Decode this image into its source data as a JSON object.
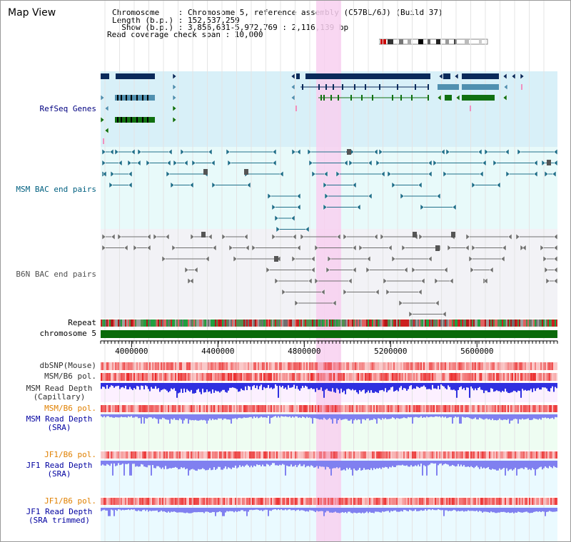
{
  "app_title": "Map View",
  "info": {
    "chromosome": "Chromosome    : Chromosome 5, reference assembly (C57BL/6J) (Build 37)",
    "length": "Length (b.p.) : 152,537,259",
    "show": "  Show (b.p.) : 3,856,631-5,972,769 : 2,116,139 bp",
    "coverage": "Read coverage check span : 10,000"
  },
  "view": {
    "start": 3856631,
    "end": 5972769,
    "highlight": [
      4800000,
      4860000
    ]
  },
  "axis": {
    "ticks": [
      4000000,
      4400000,
      4800000,
      5200000,
      5600000
    ]
  },
  "labels": {
    "refseq": "RefSeq Genes",
    "msm_bac": "MSM BAC end pairs",
    "b6n_bac": "B6N BAC end pairs",
    "repeat": "Repeat",
    "chromosome": "chromosome 5",
    "dbsnp": "dbSNP(Mouse)",
    "msm_pol": "MSM/B6 pol.",
    "msm_depth_cap_1": "MSM Read Depth",
    "msm_depth_cap_2": "(Capillary)",
    "msm_pol2": "MSM/B6 pol.",
    "msm_depth_sra_1": "MSM Read Depth",
    "msm_depth_sra_2": "(SRA)",
    "jf1_pol": "JF1/B6 pol.",
    "jf1_depth_sra_1": "JF1 Read Depth",
    "jf1_depth_sra_2": "(SRA)",
    "jf1_pol2": "JF1/B6 pol.",
    "jf1_depth_trim_1": "JF1 Read Depth",
    "jf1_depth_trim_2": "(SRA trimmed)"
  },
  "colors": {
    "refseq_bg": "#d8f0f8",
    "msm_bg": "#e8fafa",
    "b6n_bg": "#f2f2f6",
    "highlight": "#f8d0f0",
    "gene_dark": "#0a2a5a",
    "gene_blue": "#5090b0",
    "gene_green": "#107010",
    "msm_line": "#20708a",
    "b6n_line": "#707070",
    "chrom": "#0a6a0a",
    "depth_blue": "#3030e0",
    "depth_purple": "#8080f0",
    "label_navy": "#000080",
    "label_orange": "#e08000",
    "label_blue": "#0000a0",
    "label_teal": "#006080"
  }
}
